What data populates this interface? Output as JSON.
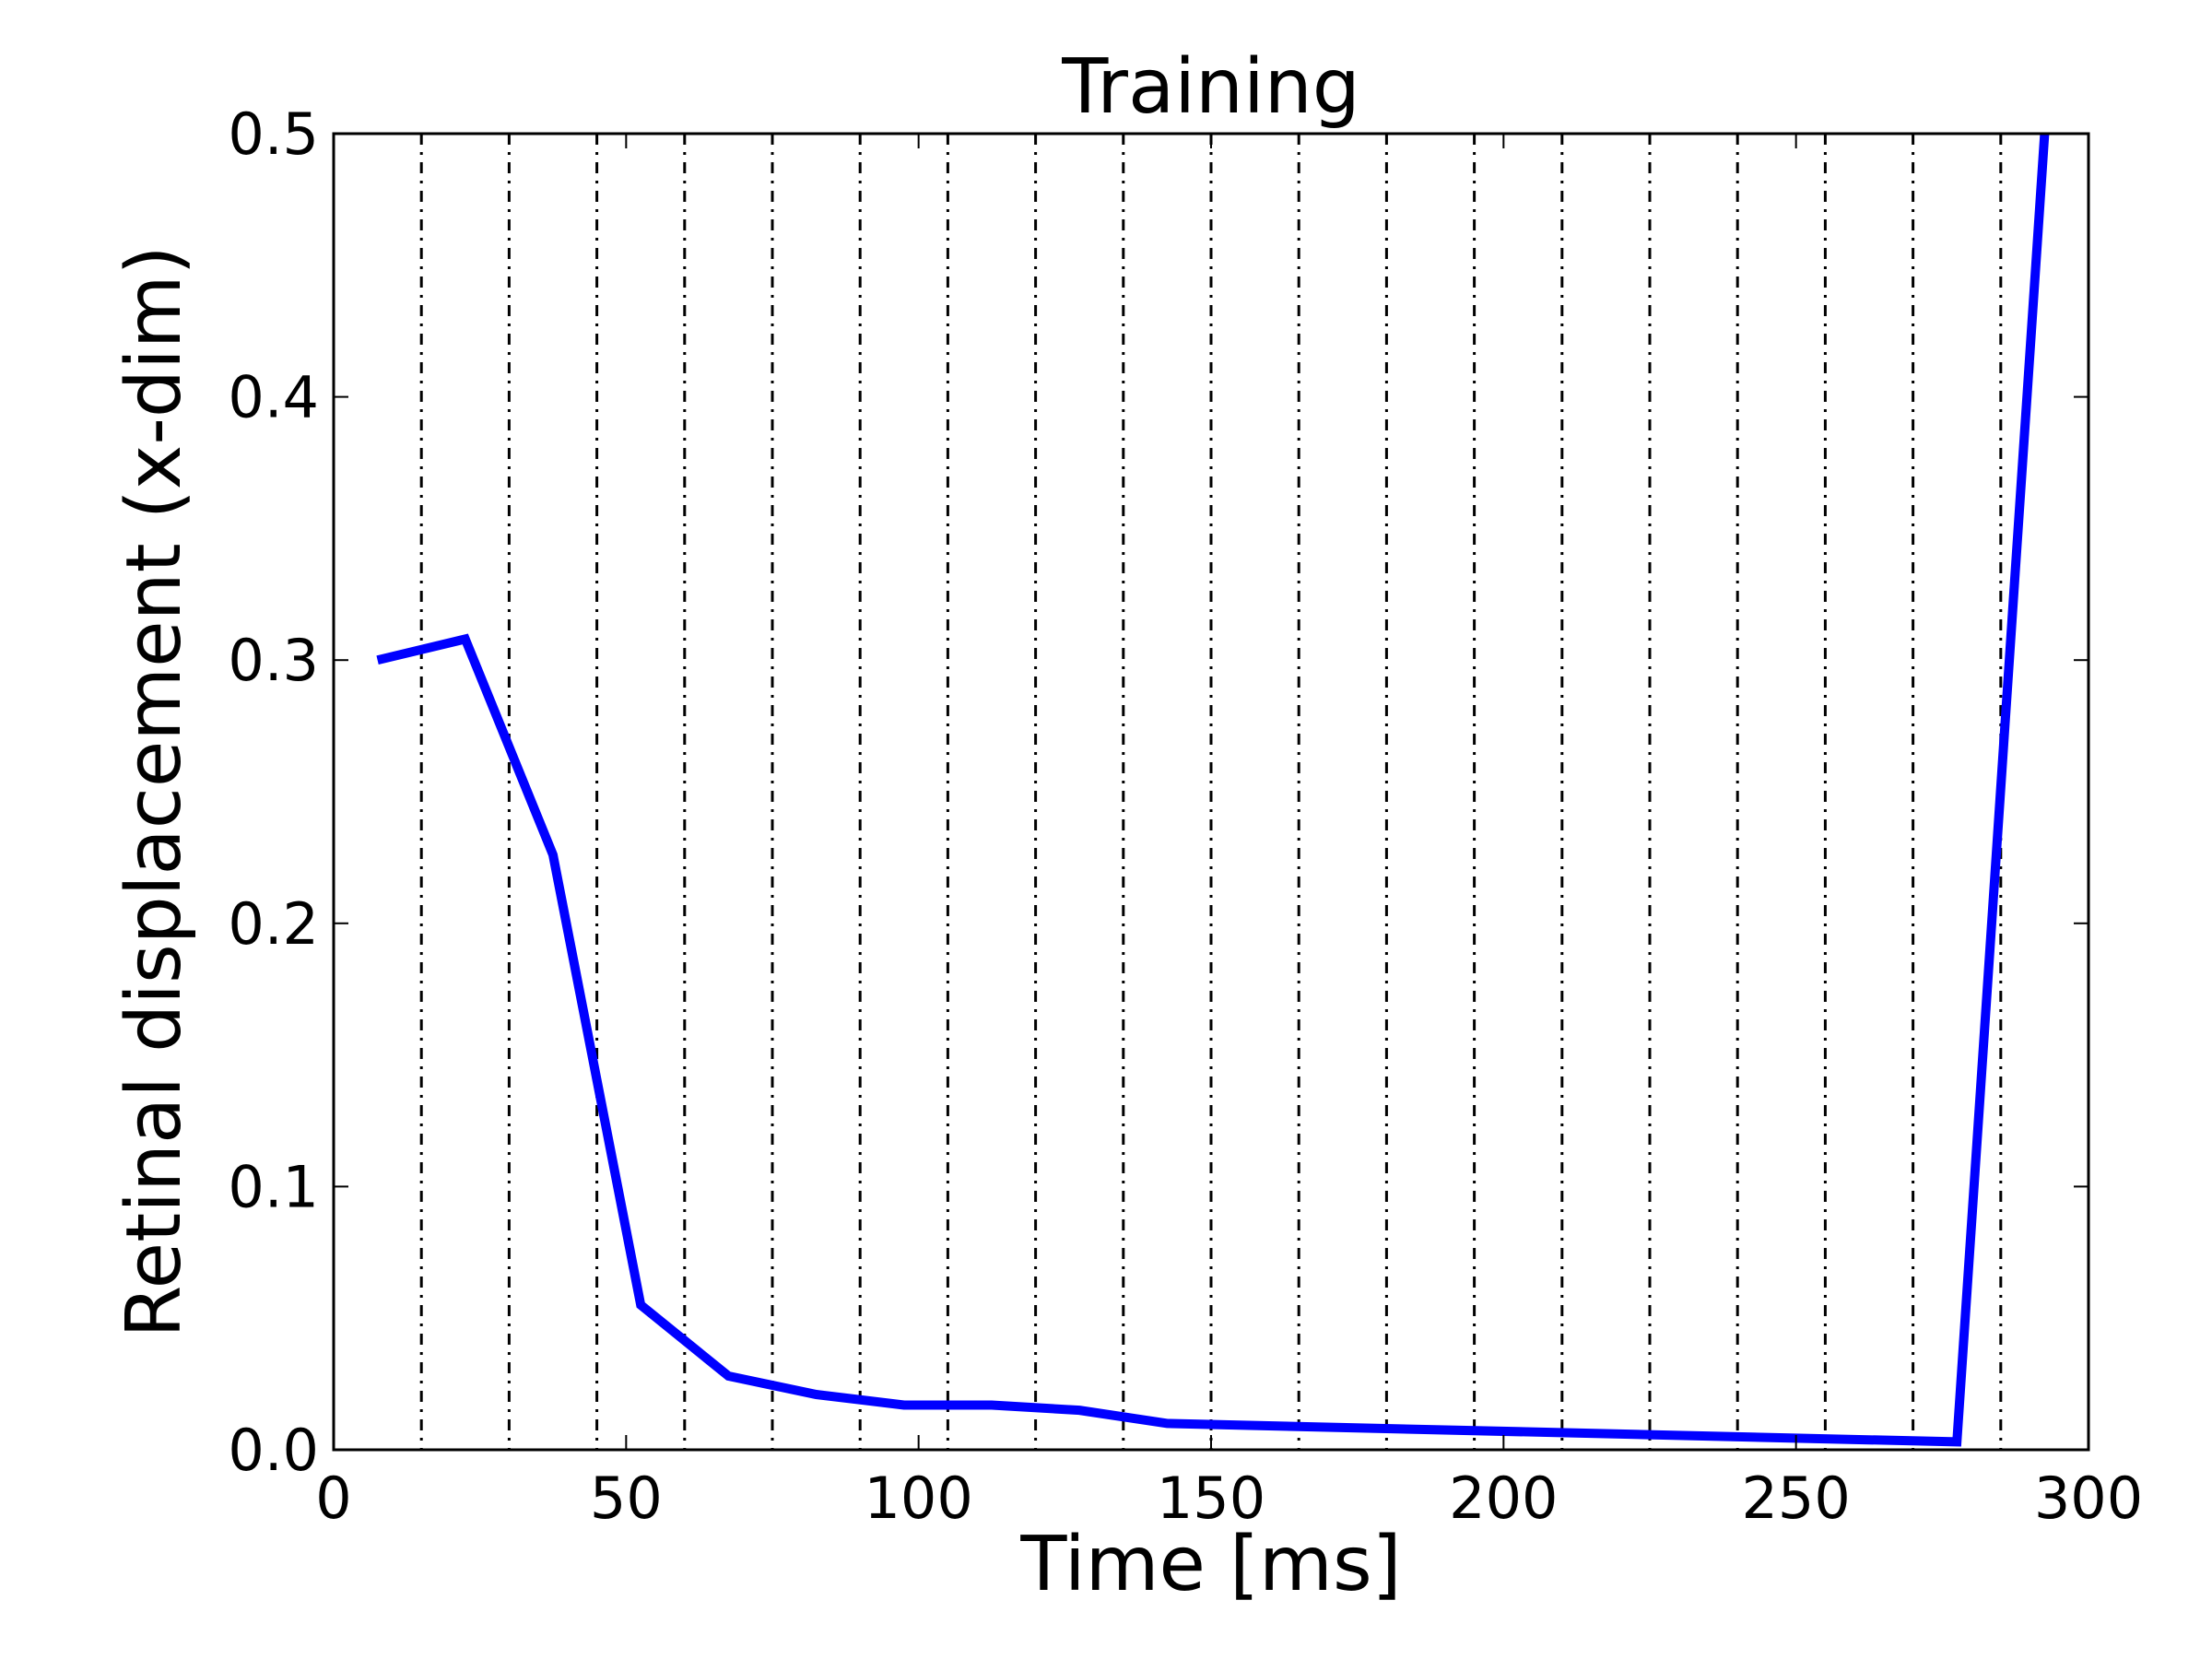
{
  "chart_data": {
    "type": "line",
    "title": "Training",
    "xlabel": "Time [ms]",
    "ylabel": "Retinal displacement (x-dim)",
    "xlim": [
      0,
      300
    ],
    "ylim": [
      0,
      0.5
    ],
    "x_ticks": [
      "0",
      "50",
      "100",
      "150",
      "200",
      "250",
      "300"
    ],
    "y_ticks": [
      "0.0",
      "0.1",
      "0.2",
      "0.3",
      "0.4",
      "0.5"
    ],
    "vertical_markers": [
      15,
      30,
      45,
      60,
      75,
      90,
      105,
      120,
      135,
      150,
      165,
      180,
      195,
      210,
      225,
      240,
      255,
      270,
      285
    ],
    "grid": false,
    "series": [
      {
        "color": "#0000ff",
        "x": [
          7.5,
          22.5,
          37.5,
          52.5,
          67.5,
          82.5,
          97.5,
          112.5,
          127.5,
          142.5,
          277.5,
          292.5
        ],
        "y": [
          0.3,
          0.308,
          0.226,
          0.055,
          0.028,
          0.021,
          0.017,
          0.017,
          0.015,
          0.01,
          0.003,
          0.5
        ]
      }
    ]
  }
}
